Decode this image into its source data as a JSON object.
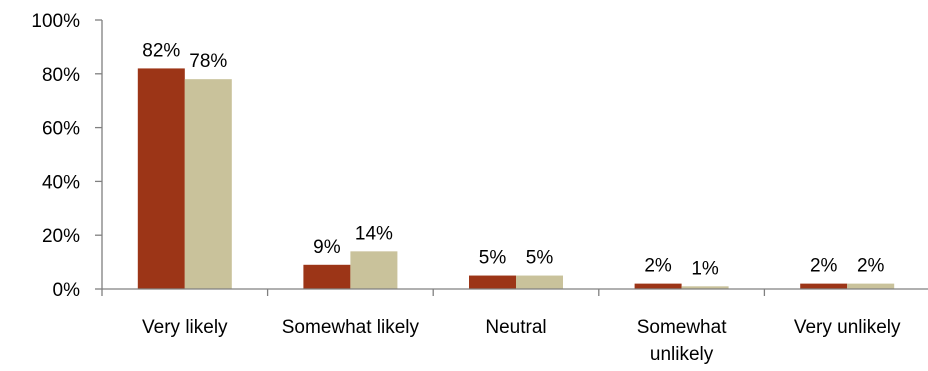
{
  "chart_data": {
    "type": "bar",
    "title": "",
    "xlabel": "",
    "ylabel": "",
    "ylim": [
      0,
      100
    ],
    "yticks": [
      0,
      20,
      40,
      60,
      80,
      100
    ],
    "ytick_labels": [
      "0%",
      "20%",
      "40%",
      "60%",
      "80%",
      "100%"
    ],
    "grid": false,
    "legend": "none",
    "categories": [
      [
        "Very likely"
      ],
      [
        "Somewhat likely"
      ],
      [
        "Neutral"
      ],
      [
        "Somewhat",
        "unlikely"
      ],
      [
        "Very unlikely"
      ]
    ],
    "series": [
      {
        "values": [
          82,
          9,
          5,
          2,
          2
        ],
        "labels": [
          "82%",
          "9%",
          "5%",
          "2%",
          "2%"
        ],
        "color": "#9C3517"
      },
      {
        "values": [
          78,
          14,
          5,
          1,
          2
        ],
        "labels": [
          "78%",
          "14%",
          "5%",
          "1%",
          "2%"
        ],
        "color": "#C9C29B"
      }
    ]
  }
}
